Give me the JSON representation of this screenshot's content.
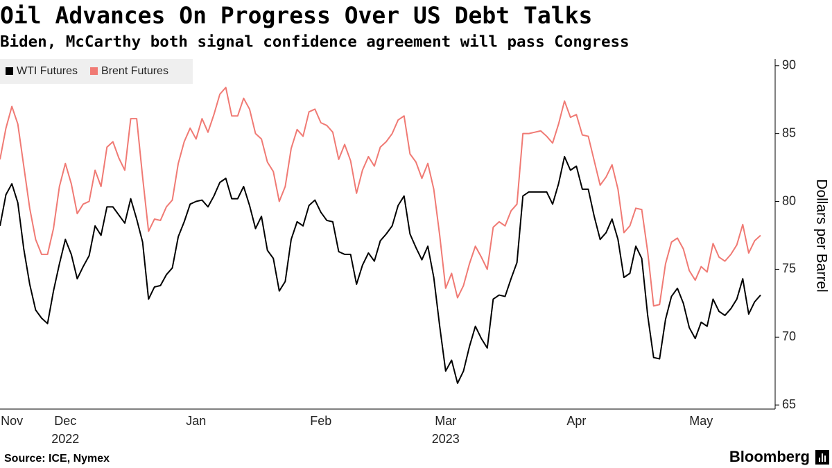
{
  "chart_data": {
    "type": "line",
    "title": "Oil Advances On Progress Over US Debt Talks",
    "subtitle": "Biden, McCarthy both signal confidence agreement will pass Congress",
    "y_axis_label": "Dollars per Barrel",
    "source": "Source: ICE, Nymex",
    "brand": "Bloomberg",
    "categories": [
      null,
      null,
      "Nov",
      null,
      null,
      null,
      null,
      null,
      null,
      null,
      null,
      "Dec",
      null,
      null,
      null,
      null,
      null,
      null,
      null,
      null,
      null,
      null,
      null,
      null,
      null,
      null,
      null,
      null,
      null,
      null,
      null,
      null,
      null,
      "Jan",
      null,
      null,
      null,
      null,
      null,
      null,
      null,
      null,
      null,
      null,
      null,
      null,
      null,
      null,
      null,
      null,
      null,
      null,
      null,
      null,
      "Feb",
      null,
      null,
      null,
      null,
      null,
      null,
      null,
      null,
      null,
      null,
      null,
      null,
      null,
      null,
      null,
      null,
      null,
      null,
      null,
      null,
      "Mar",
      null,
      null,
      null,
      null,
      null,
      null,
      null,
      null,
      null,
      null,
      null,
      null,
      null,
      null,
      null,
      null,
      null,
      null,
      null,
      null,
      null,
      "Apr",
      null,
      null,
      null,
      null,
      null,
      null,
      null,
      null,
      null,
      null,
      null,
      null,
      null,
      null,
      null,
      null,
      null,
      null,
      null,
      null,
      "May",
      null,
      null,
      null,
      null,
      null,
      null,
      null,
      null,
      null,
      null
    ],
    "category_groups": [
      null,
      null,
      null,
      null,
      null,
      null,
      null,
      null,
      null,
      null,
      null,
      "2022",
      null,
      null,
      null,
      null,
      null,
      null,
      null,
      null,
      null,
      null,
      null,
      null,
      null,
      null,
      null,
      null,
      null,
      null,
      null,
      null,
      null,
      null,
      null,
      null,
      null,
      null,
      null,
      null,
      null,
      null,
      null,
      null,
      null,
      null,
      null,
      null,
      null,
      null,
      null,
      null,
      null,
      null,
      null,
      null,
      null,
      null,
      null,
      null,
      null,
      null,
      null,
      null,
      null,
      null,
      null,
      null,
      null,
      null,
      null,
      null,
      null,
      null,
      null,
      "2023",
      null,
      null,
      null,
      null,
      null,
      null,
      null,
      null,
      null,
      null,
      null,
      null,
      null,
      null,
      null,
      null,
      null,
      null,
      null,
      null,
      null,
      null,
      null,
      null,
      null,
      null,
      null,
      null,
      null,
      null,
      null,
      null,
      null,
      null,
      null,
      null,
      null,
      null,
      null,
      null,
      null,
      null,
      null,
      null,
      null,
      null,
      null,
      null,
      null,
      null,
      null,
      null,
      null
    ],
    "series": [
      {
        "name": "WTI Futures",
        "color": "#000000",
        "values": [
          78.2,
          80.5,
          81.3,
          79.9,
          76.5,
          73.9,
          72.0,
          71.4,
          71.0,
          73.4,
          75.4,
          77.2,
          76.1,
          74.3,
          75.2,
          76.0,
          78.2,
          77.5,
          79.6,
          79.6,
          79.0,
          78.4,
          80.2,
          78.7,
          77.0,
          72.8,
          73.7,
          73.8,
          74.6,
          75.1,
          77.4,
          78.5,
          79.8,
          80.0,
          80.1,
          79.6,
          80.4,
          81.4,
          81.7,
          80.2,
          80.2,
          81.1,
          79.7,
          78.0,
          78.9,
          76.4,
          75.8,
          73.4,
          74.1,
          77.2,
          78.5,
          78.2,
          79.7,
          80.1,
          79.2,
          78.6,
          78.5,
          76.3,
          76.1,
          76.1,
          73.9,
          75.3,
          76.2,
          75.6,
          77.1,
          77.6,
          78.2,
          79.7,
          80.4,
          77.6,
          76.6,
          75.7,
          76.7,
          74.4,
          70.8,
          67.5,
          68.3,
          66.6,
          67.5,
          69.3,
          70.8,
          69.9,
          69.2,
          72.8,
          73.1,
          73.0,
          74.3,
          75.5,
          80.4,
          80.7,
          80.7,
          80.7,
          80.7,
          79.8,
          81.3,
          83.3,
          82.3,
          82.6,
          80.9,
          80.9,
          78.9,
          77.2,
          77.7,
          78.7,
          77.2,
          74.4,
          74.7,
          76.7,
          75.8,
          71.6,
          68.5,
          68.4,
          71.3,
          73.0,
          73.6,
          72.5,
          70.7,
          69.9,
          71.1,
          70.8,
          72.8,
          71.9,
          71.6,
          72.1,
          72.8,
          74.3,
          71.7,
          72.6,
          73.1
        ]
      },
      {
        "name": "Brent Futures",
        "color": "#f07a74",
        "values": [
          83.1,
          85.4,
          87.0,
          85.7,
          82.6,
          79.5,
          77.2,
          76.1,
          76.1,
          78.0,
          81.1,
          82.8,
          81.3,
          79.1,
          79.8,
          80.0,
          82.3,
          81.1,
          84.0,
          84.4,
          83.2,
          82.3,
          86.1,
          86.1,
          81.8,
          77.8,
          78.7,
          78.6,
          79.6,
          80.1,
          82.8,
          84.4,
          85.4,
          84.6,
          86.1,
          85.1,
          86.4,
          87.9,
          88.4,
          86.3,
          86.3,
          87.6,
          86.8,
          85.0,
          84.6,
          82.9,
          82.2,
          80.0,
          81.1,
          83.9,
          85.3,
          84.8,
          86.6,
          86.8,
          85.8,
          85.6,
          85.1,
          83.1,
          84.2,
          83.0,
          80.6,
          82.3,
          83.3,
          82.6,
          84.0,
          84.4,
          85.0,
          86.0,
          86.3,
          83.5,
          82.9,
          81.7,
          82.8,
          80.9,
          77.5,
          73.6,
          74.7,
          72.9,
          73.8,
          75.4,
          76.7,
          75.9,
          75.0,
          78.1,
          78.5,
          78.2,
          79.3,
          79.8,
          85.0,
          85.0,
          85.1,
          85.2,
          84.8,
          84.3,
          85.7,
          87.4,
          86.2,
          86.4,
          84.9,
          84.8,
          83.0,
          81.2,
          81.8,
          82.7,
          80.9,
          77.7,
          78.2,
          79.5,
          79.4,
          76.3,
          72.3,
          72.4,
          75.4,
          77.0,
          77.3,
          76.5,
          74.9,
          74.2,
          75.2,
          74.8,
          76.9,
          75.9,
          75.6,
          76.1,
          76.8,
          78.3,
          76.2,
          77.1,
          77.5
        ]
      }
    ],
    "ylim": [
      64.7,
      90.5
    ],
    "yticks": [
      65,
      70,
      75,
      80,
      85,
      90
    ],
    "y_axis_side": "right",
    "legend": "top-left",
    "grid": false
  }
}
